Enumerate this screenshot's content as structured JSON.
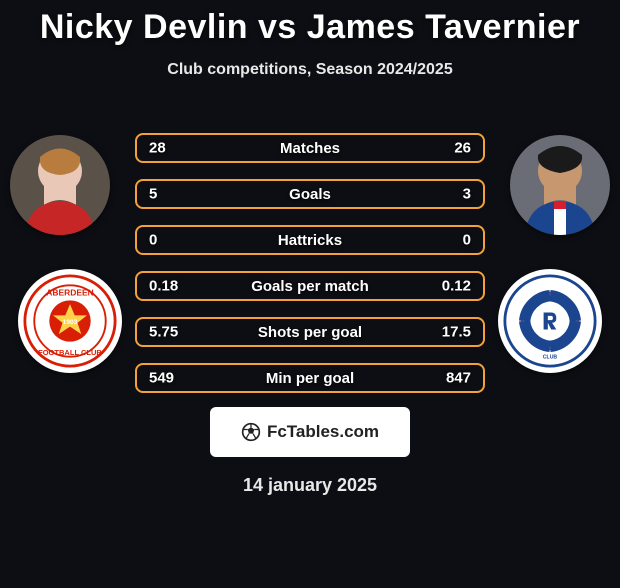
{
  "title": "Nicky Devlin vs James Tavernier",
  "subtitle": "Club competitions, Season 2024/2025",
  "player_left": {
    "name": "Nicky Devlin",
    "photo_bg": "#e9c8b8",
    "club_name": "Aberdeen",
    "club_primary": "#d81e05",
    "club_secondary": "#ffffff",
    "club_year": "1903"
  },
  "player_right": {
    "name": "James Tavernier",
    "photo_bg": "#c7986f",
    "club_name": "Rangers",
    "club_primary": "#1b458f",
    "club_secondary": "#d81e2d"
  },
  "bar_border_color": "#f5a13a",
  "bar_background": "transparent",
  "stats": [
    {
      "label": "Matches",
      "left_value": "28",
      "right_value": "26"
    },
    {
      "label": "Goals",
      "left_value": "5",
      "right_value": "3"
    },
    {
      "label": "Hattricks",
      "left_value": "0",
      "right_value": "0"
    },
    {
      "label": "Goals per match",
      "left_value": "0.18",
      "right_value": "0.12"
    },
    {
      "label": "Shots per goal",
      "left_value": "5.75",
      "right_value": "17.5"
    },
    {
      "label": "Min per goal",
      "left_value": "549",
      "right_value": "847"
    }
  ],
  "footer_brand": "FcTables.com",
  "date": "14 january 2025",
  "colors": {
    "page_bg": "#0d0e13",
    "text": "#ffffff",
    "muted_text": "#e8e8e8"
  },
  "typography": {
    "title_fontsize": 34,
    "subtitle_fontsize": 16,
    "stat_fontsize": 15,
    "date_fontsize": 18
  }
}
